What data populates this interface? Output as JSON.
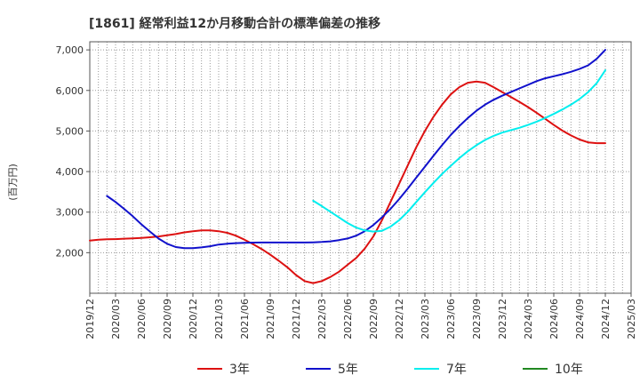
{
  "chart_data": {
    "type": "line",
    "title": "[1861]  経常利益12か月移動合計の標準偏差の推移",
    "xlabel": "",
    "ylabel": "(百万円)",
    "ylim": [
      1000,
      7200
    ],
    "yticks": [
      2000,
      3000,
      4000,
      5000,
      6000,
      7000
    ],
    "ytick_labels": [
      "2,000",
      "3,000",
      "4,000",
      "5,000",
      "6,000",
      "7,000"
    ],
    "x_start": "2019/12",
    "x_end": "2025/03",
    "xtick_labels": [
      "2019/12",
      "2020/03",
      "2020/06",
      "2020/09",
      "2020/12",
      "2021/03",
      "2021/06",
      "2021/09",
      "2021/12",
      "2022/03",
      "2022/06",
      "2022/09",
      "2022/12",
      "2023/03",
      "2023/06",
      "2023/09",
      "2023/12",
      "2024/03",
      "2024/06",
      "2024/09",
      "2024/12",
      "2025/03"
    ],
    "grid": true,
    "legend_position": "bottom",
    "series": [
      {
        "name": "3年",
        "color": "#dd1111",
        "points": [
          [
            "2019/12",
            2300
          ],
          [
            "2020/01",
            2320
          ],
          [
            "2020/02",
            2330
          ],
          [
            "2020/03",
            2335
          ],
          [
            "2020/04",
            2345
          ],
          [
            "2020/05",
            2355
          ],
          [
            "2020/06",
            2365
          ],
          [
            "2020/07",
            2380
          ],
          [
            "2020/08",
            2400
          ],
          [
            "2020/09",
            2430
          ],
          [
            "2020/10",
            2460
          ],
          [
            "2020/11",
            2500
          ],
          [
            "2020/12",
            2530
          ],
          [
            "2021/01",
            2550
          ],
          [
            "2021/02",
            2550
          ],
          [
            "2021/03",
            2530
          ],
          [
            "2021/04",
            2490
          ],
          [
            "2021/05",
            2420
          ],
          [
            "2021/06",
            2320
          ],
          [
            "2021/07",
            2210
          ],
          [
            "2021/08",
            2090
          ],
          [
            "2021/09",
            1950
          ],
          [
            "2021/10",
            1800
          ],
          [
            "2021/11",
            1640
          ],
          [
            "2021/12",
            1450
          ],
          [
            "2022/01",
            1300
          ],
          [
            "2022/02",
            1250
          ],
          [
            "2022/03",
            1300
          ],
          [
            "2022/04",
            1400
          ],
          [
            "2022/05",
            1530
          ],
          [
            "2022/06",
            1700
          ],
          [
            "2022/07",
            1870
          ],
          [
            "2022/08",
            2100
          ],
          [
            "2022/09",
            2400
          ],
          [
            "2022/10",
            2800
          ],
          [
            "2022/11",
            3250
          ],
          [
            "2022/12",
            3700
          ],
          [
            "2023/01",
            4150
          ],
          [
            "2023/02",
            4600
          ],
          [
            "2023/03",
            5000
          ],
          [
            "2023/04",
            5350
          ],
          [
            "2023/05",
            5650
          ],
          [
            "2023/06",
            5900
          ],
          [
            "2023/07",
            6080
          ],
          [
            "2023/08",
            6190
          ],
          [
            "2023/09",
            6220
          ],
          [
            "2023/10",
            6190
          ],
          [
            "2023/11",
            6080
          ],
          [
            "2023/12",
            5960
          ],
          [
            "2024/01",
            5840
          ],
          [
            "2024/02",
            5720
          ],
          [
            "2024/03",
            5590
          ],
          [
            "2024/04",
            5450
          ],
          [
            "2024/05",
            5300
          ],
          [
            "2024/06",
            5150
          ],
          [
            "2024/07",
            5010
          ],
          [
            "2024/08",
            4890
          ],
          [
            "2024/09",
            4790
          ],
          [
            "2024/10",
            4720
          ],
          [
            "2024/11",
            4700
          ],
          [
            "2024/12",
            4700
          ]
        ]
      },
      {
        "name": "5年",
        "color": "#1111cc",
        "points": [
          [
            "2020/02",
            3400
          ],
          [
            "2020/03",
            3250
          ],
          [
            "2020/04",
            3080
          ],
          [
            "2020/05",
            2900
          ],
          [
            "2020/06",
            2700
          ],
          [
            "2020/07",
            2520
          ],
          [
            "2020/08",
            2350
          ],
          [
            "2020/09",
            2220
          ],
          [
            "2020/10",
            2140
          ],
          [
            "2020/11",
            2110
          ],
          [
            "2020/12",
            2110
          ],
          [
            "2021/01",
            2130
          ],
          [
            "2021/02",
            2160
          ],
          [
            "2021/03",
            2200
          ],
          [
            "2021/04",
            2220
          ],
          [
            "2021/05",
            2235
          ],
          [
            "2021/06",
            2245
          ],
          [
            "2021/07",
            2248
          ],
          [
            "2021/08",
            2250
          ],
          [
            "2021/09",
            2250
          ],
          [
            "2021/10",
            2250
          ],
          [
            "2021/11",
            2250
          ],
          [
            "2021/12",
            2250
          ],
          [
            "2022/01",
            2252
          ],
          [
            "2022/02",
            2255
          ],
          [
            "2022/03",
            2265
          ],
          [
            "2022/04",
            2280
          ],
          [
            "2022/05",
            2310
          ],
          [
            "2022/06",
            2350
          ],
          [
            "2022/07",
            2420
          ],
          [
            "2022/08",
            2530
          ],
          [
            "2022/09",
            2680
          ],
          [
            "2022/10",
            2870
          ],
          [
            "2022/11",
            3080
          ],
          [
            "2022/12",
            3320
          ],
          [
            "2023/01",
            3580
          ],
          [
            "2023/02",
            3850
          ],
          [
            "2023/03",
            4120
          ],
          [
            "2023/04",
            4390
          ],
          [
            "2023/05",
            4650
          ],
          [
            "2023/06",
            4900
          ],
          [
            "2023/07",
            5120
          ],
          [
            "2023/08",
            5320
          ],
          [
            "2023/09",
            5500
          ],
          [
            "2023/10",
            5650
          ],
          [
            "2023/11",
            5770
          ],
          [
            "2023/12",
            5870
          ],
          [
            "2024/01",
            5960
          ],
          [
            "2024/02",
            6050
          ],
          [
            "2024/03",
            6140
          ],
          [
            "2024/04",
            6230
          ],
          [
            "2024/05",
            6300
          ],
          [
            "2024/06",
            6350
          ],
          [
            "2024/07",
            6400
          ],
          [
            "2024/08",
            6460
          ],
          [
            "2024/09",
            6530
          ],
          [
            "2024/10",
            6620
          ],
          [
            "2024/11",
            6780
          ],
          [
            "2024/12",
            7000
          ]
        ]
      },
      {
        "name": "7年",
        "color": "#00eeee",
        "points": [
          [
            "2022/02",
            3280
          ],
          [
            "2022/03",
            3150
          ],
          [
            "2022/04",
            3010
          ],
          [
            "2022/05",
            2870
          ],
          [
            "2022/06",
            2730
          ],
          [
            "2022/07",
            2620
          ],
          [
            "2022/08",
            2550
          ],
          [
            "2022/09",
            2520
          ],
          [
            "2022/10",
            2540
          ],
          [
            "2022/11",
            2640
          ],
          [
            "2022/12",
            2800
          ],
          [
            "2023/01",
            3010
          ],
          [
            "2023/02",
            3250
          ],
          [
            "2023/03",
            3490
          ],
          [
            "2023/04",
            3720
          ],
          [
            "2023/05",
            3940
          ],
          [
            "2023/06",
            4140
          ],
          [
            "2023/07",
            4330
          ],
          [
            "2023/08",
            4500
          ],
          [
            "2023/09",
            4650
          ],
          [
            "2023/10",
            4780
          ],
          [
            "2023/11",
            4880
          ],
          [
            "2023/12",
            4960
          ],
          [
            "2024/01",
            5020
          ],
          [
            "2024/02",
            5080
          ],
          [
            "2024/03",
            5150
          ],
          [
            "2024/04",
            5230
          ],
          [
            "2024/05",
            5320
          ],
          [
            "2024/06",
            5420
          ],
          [
            "2024/07",
            5530
          ],
          [
            "2024/08",
            5650
          ],
          [
            "2024/09",
            5790
          ],
          [
            "2024/10",
            5960
          ],
          [
            "2024/11",
            6180
          ],
          [
            "2024/12",
            6500
          ]
        ]
      },
      {
        "name": "10年",
        "color": "#228822",
        "points": []
      }
    ]
  }
}
